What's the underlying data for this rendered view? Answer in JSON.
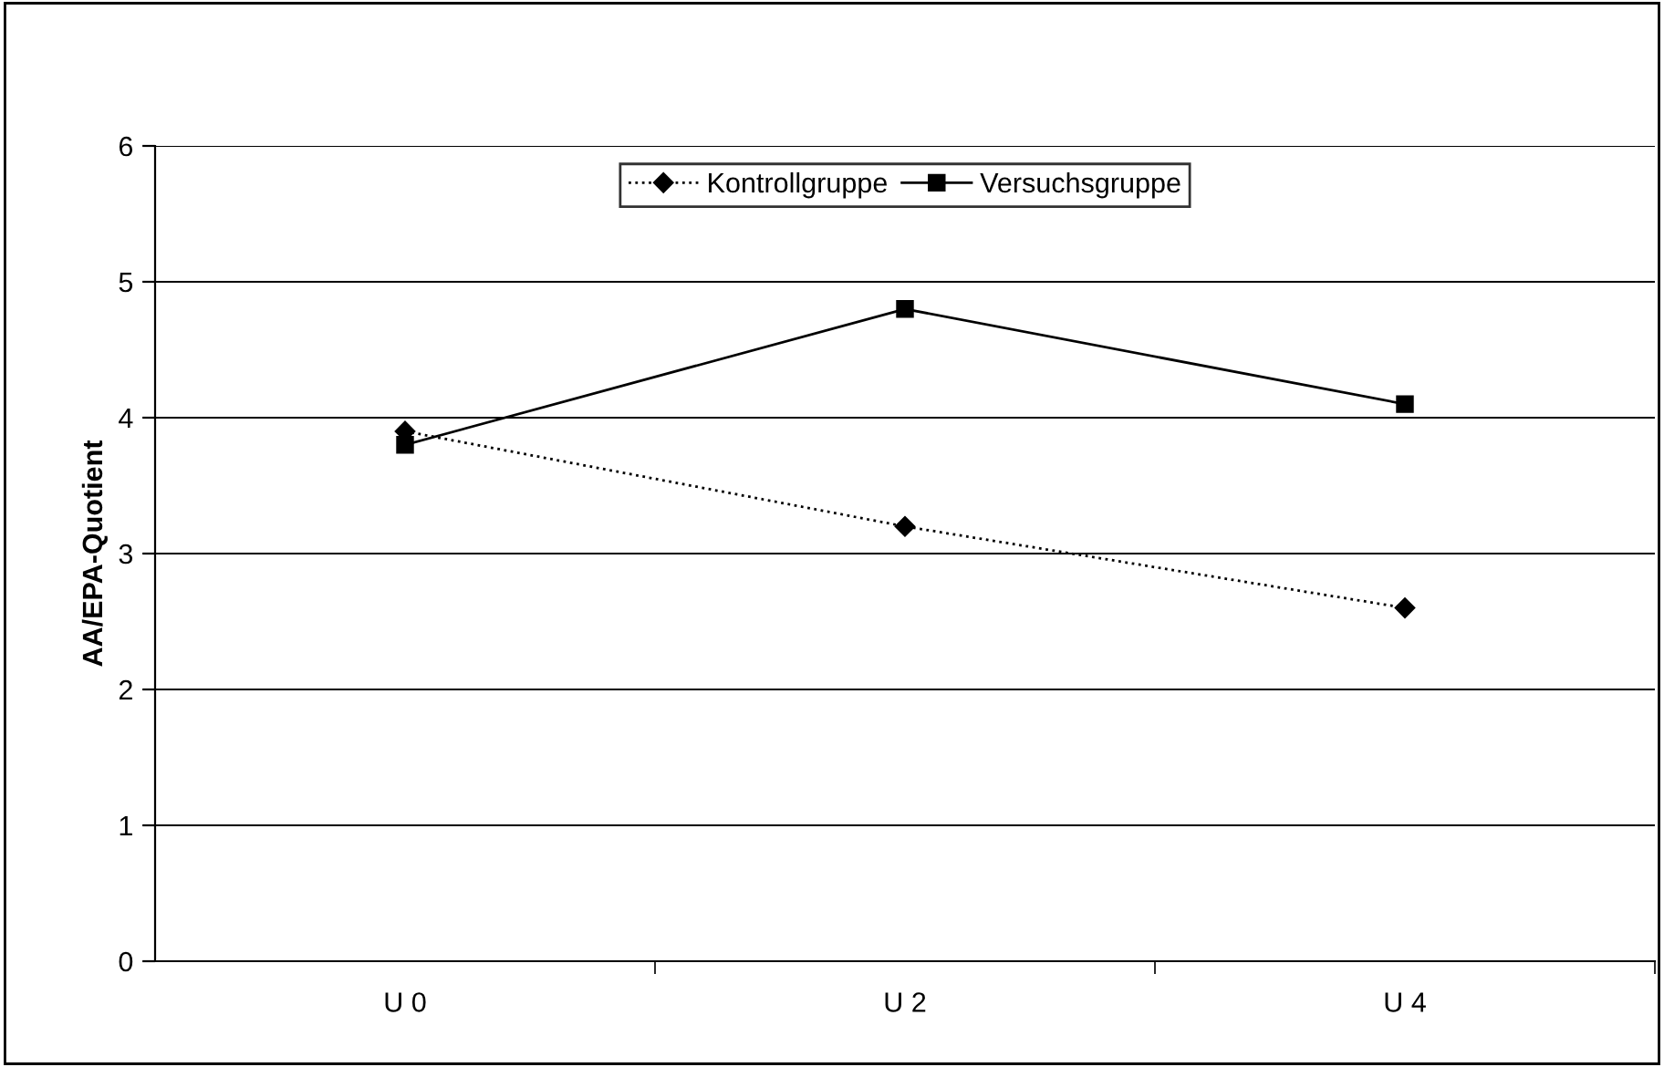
{
  "chart_data": {
    "type": "line",
    "ylabel": "AA/EPA-Quotient",
    "categories": [
      "U 0",
      "U 2",
      "U 4"
    ],
    "series": [
      {
        "name": "Kontrollgruppe",
        "color": "#000000",
        "values": [
          3.9,
          3.2,
          2.6
        ],
        "marker": "diamond",
        "line_style": "dotted"
      },
      {
        "name": "Versuchsgruppe",
        "color": "#000000",
        "values": [
          3.8,
          4.8,
          4.1
        ],
        "marker": "square",
        "line_style": "solid"
      }
    ],
    "ylim": [
      0,
      6
    ],
    "yticks": [
      0,
      1,
      2,
      3,
      4,
      5,
      6
    ],
    "grid": "y",
    "legend": "top"
  }
}
